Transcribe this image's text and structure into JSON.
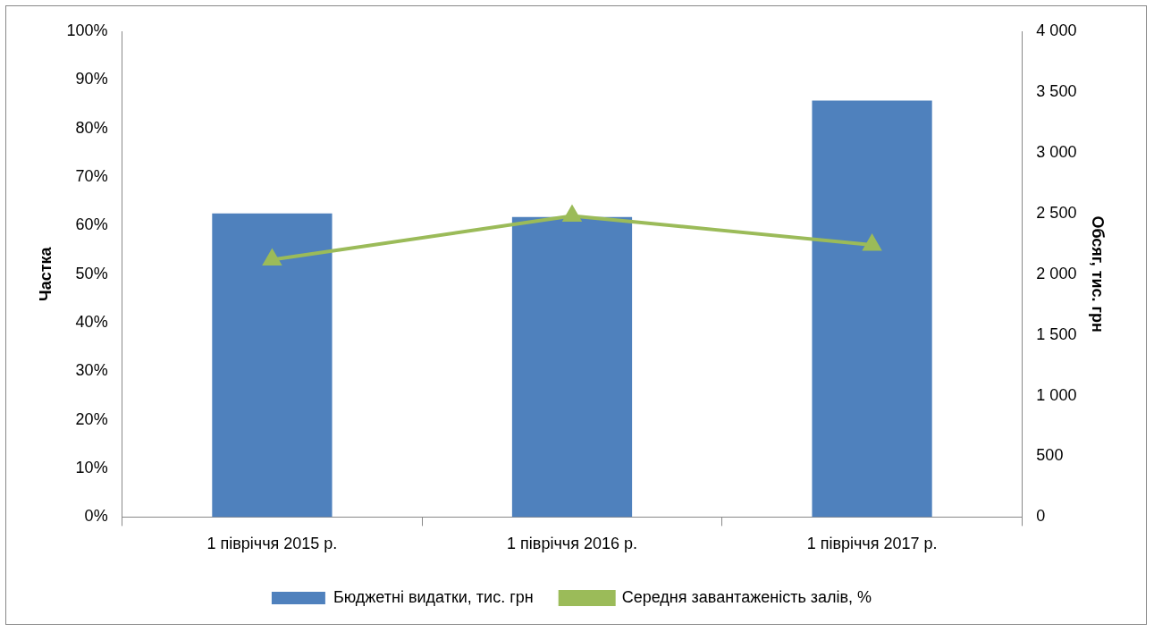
{
  "chart_data": {
    "type": "bar",
    "categories": [
      "1 півріччя 2015 р.",
      "1 півріччя 2016 р.",
      "1 півріччя 2017 р."
    ],
    "ylabel": "Частка",
    "y2label": "Обсяг, тис. грн",
    "series": [
      {
        "name": "Бюджетні видатки, тис. грн",
        "axis": "y2",
        "color": "#4f81bd",
        "values": [
          2500,
          2470,
          3430
        ]
      },
      {
        "name": "Середня завантаженість залів, %",
        "type": "line",
        "axis": "y",
        "color": "#9bbb59",
        "marker": "triangle",
        "values": [
          53,
          62,
          56
        ]
      }
    ],
    "ylim": [
      0,
      100
    ],
    "yticks": [
      {
        "value": 0,
        "label": "0%"
      },
      {
        "value": 10,
        "label": "10%"
      },
      {
        "value": 20,
        "label": "20%"
      },
      {
        "value": 30,
        "label": "30%"
      },
      {
        "value": 40,
        "label": "40%"
      },
      {
        "value": 50,
        "label": "50%"
      },
      {
        "value": 60,
        "label": "60%"
      },
      {
        "value": 70,
        "label": "70%"
      },
      {
        "value": 80,
        "label": "80%"
      },
      {
        "value": 90,
        "label": "90%"
      },
      {
        "value": 100,
        "label": "100%"
      }
    ],
    "y2lim": [
      0,
      4000
    ],
    "y2ticks": [
      0,
      500,
      {
        "value": 1000,
        "label": "1 000"
      },
      {
        "value": 1500,
        "label": "1 500"
      },
      {
        "value": 2000,
        "label": "2 000"
      },
      {
        "value": 2500,
        "label": "2 500"
      },
      {
        "value": 3000,
        "label": "3 000"
      },
      {
        "value": 3500,
        "label": "3 500"
      },
      {
        "value": 4000,
        "label": "4 000"
      }
    ],
    "grid": false,
    "legend": "bottom"
  }
}
